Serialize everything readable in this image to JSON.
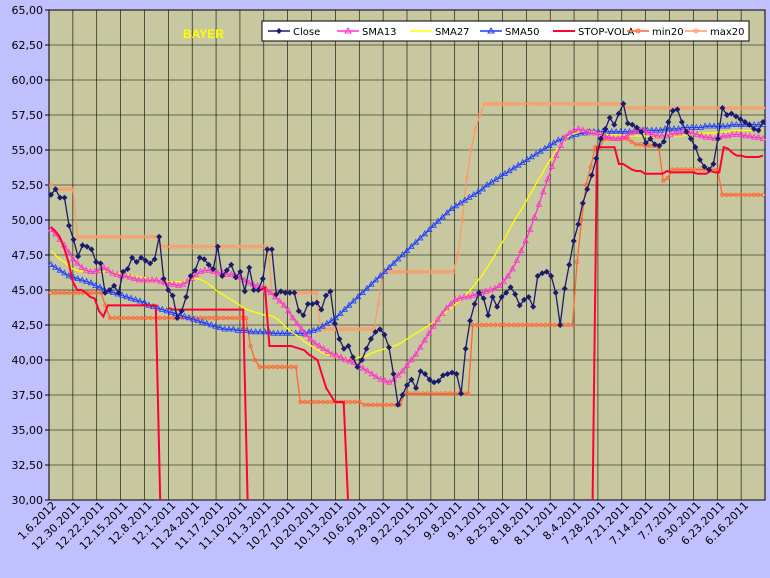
{
  "chart_data": {
    "type": "line",
    "title": "BAYER",
    "ylim": [
      30,
      65
    ],
    "y_ticks": [
      "30,00",
      "32,50",
      "35,00",
      "37,50",
      "40,00",
      "42,50",
      "45,00",
      "47,50",
      "50,00",
      "52,50",
      "55,00",
      "57,50",
      "60,00",
      "62,50",
      "65,00"
    ],
    "x_tick_labels": [
      "1.6.2012",
      "12.30.2011",
      "12.22.2011",
      "12.15.2011",
      "12.8.2011",
      "12.1.2011",
      "11.24.2011",
      "11.17.2011",
      "11.10.2011",
      "11.3.2011",
      "10.27.2011",
      "10.20.2011",
      "10.13.2011",
      "10.6.2011",
      "9.29.2011",
      "9.22.2011",
      "9.15.2011",
      "9.8.2011",
      "9.1.2011",
      "8.25.2011",
      "8.18.2011",
      "8.11.2011",
      "8.4.2011",
      "7.28.2011",
      "7.21.2011",
      "7.14.2011",
      "7.7.2011",
      "6.30.2011",
      "6.23.2011",
      "6.16.2011"
    ],
    "grid": true,
    "legend_position": "top-right",
    "series": [
      {
        "name": "Close",
        "color": "#1a1a6e",
        "marker": "diamond",
        "values": [
          51.8,
          52.2,
          51.6,
          51.6,
          49.6,
          48.6,
          47.4,
          48.2,
          48.1,
          47.9,
          47.0,
          46.9,
          44.8,
          45.0,
          45.3,
          44.8,
          46.3,
          46.5,
          47.3,
          47.0,
          47.3,
          47.1,
          46.9,
          47.2,
          48.8,
          45.8,
          45.0,
          44.6,
          43.0,
          43.5,
          44.5,
          46.0,
          46.4,
          47.3,
          47.2,
          46.8,
          46.5,
          48.1,
          46.0,
          46.4,
          46.8,
          45.9,
          46.3,
          44.9,
          46.6,
          45.0,
          45.0,
          45.8,
          47.9,
          47.9,
          44.7,
          44.9,
          44.8,
          44.8,
          44.8,
          43.5,
          43.2,
          44.0,
          44.0,
          44.1,
          43.6,
          44.6,
          44.9,
          42.6,
          41.5,
          40.8,
          41.0,
          40.2,
          39.5,
          40.0,
          40.8,
          41.5,
          42.0,
          42.2,
          41.8,
          40.9,
          39.0,
          36.8,
          37.5,
          38.2,
          38.6,
          38.0,
          39.2,
          39.0,
          38.6,
          38.4,
          38.5,
          38.9,
          39.0,
          39.1,
          39.0,
          37.6,
          40.8,
          42.8,
          44.0,
          44.8,
          44.4,
          43.2,
          44.5,
          43.8,
          44.5,
          44.8,
          45.2,
          44.7,
          43.9,
          44.3,
          44.5,
          43.8,
          46.0,
          46.2,
          46.3,
          46.0,
          44.8,
          42.5,
          45.1,
          46.8,
          48.5,
          49.7,
          51.2,
          52.2,
          53.2,
          54.4,
          55.8,
          56.5,
          57.3,
          56.8,
          57.6,
          58.3,
          56.9,
          56.8,
          56.6,
          56.3,
          55.5,
          55.8,
          55.4,
          55.3,
          55.6,
          57.0,
          57.8,
          57.9,
          57.0,
          56.3,
          55.8,
          55.2,
          54.3,
          53.8,
          53.6,
          54.0,
          55.8,
          58.0,
          57.5,
          57.6,
          57.4,
          57.2,
          57.0,
          56.8,
          56.5,
          56.4,
          57.0
        ]
      },
      {
        "name": "SMA13",
        "color": "#ff33cc",
        "marker": "triangle",
        "values": [
          49.3,
          49.0,
          48.6,
          48.2,
          47.7,
          47.2,
          46.9,
          46.6,
          46.4,
          46.3,
          46.3,
          46.4,
          46.6,
          46.4,
          46.2,
          46.1,
          46.0,
          46.0,
          45.9,
          45.8,
          45.7,
          45.7,
          45.7,
          45.7,
          45.7,
          45.6,
          45.5,
          45.4,
          45.4,
          45.3,
          45.4,
          45.6,
          45.8,
          46.1,
          46.3,
          46.4,
          46.4,
          46.3,
          46.2,
          46.2,
          46.1,
          46.1,
          46.0,
          45.9,
          45.7,
          45.5,
          45.4,
          45.3,
          45.1,
          45.0,
          44.8,
          44.5,
          44.2,
          43.9,
          43.5,
          43.0,
          42.6,
          42.2,
          41.8,
          41.5,
          41.2,
          41.0,
          40.8,
          40.6,
          40.4,
          40.3,
          40.2,
          40.0,
          39.9,
          39.8,
          39.6,
          39.4,
          39.2,
          39.0,
          38.8,
          38.6,
          38.5,
          38.4,
          38.6,
          38.9,
          39.2,
          39.6,
          40.0,
          40.4,
          40.9,
          41.4,
          41.9,
          42.4,
          42.9,
          43.3,
          43.7,
          44.0,
          44.3,
          44.4,
          44.5,
          44.5,
          44.6,
          44.7,
          44.8,
          44.9,
          45.0,
          45.1,
          45.3,
          45.6,
          46.0,
          46.5,
          47.1,
          47.8,
          48.5,
          49.3,
          50.2,
          51.1,
          52.0,
          52.9,
          53.8,
          54.6,
          55.3,
          55.9,
          56.2,
          56.4,
          56.5,
          56.4,
          56.3,
          56.2,
          56.2,
          56.1,
          56.0,
          55.9,
          55.8,
          55.8,
          55.9,
          56.0,
          56.2,
          56.3,
          56.4,
          56.4,
          56.2,
          56.1,
          56.0,
          56.0,
          56.0,
          56.1,
          56.2,
          56.2,
          56.3,
          56.3,
          56.2,
          56.1,
          56.0,
          55.9,
          55.9,
          55.8,
          55.9,
          56.0,
          56.0,
          56.1,
          56.1,
          56.1,
          56.0,
          56.0,
          55.9,
          55.9,
          55.8
        ]
      },
      {
        "name": "SMA27",
        "color": "#ffff00",
        "marker": "none",
        "values": [
          47.8,
          47.5,
          47.2,
          47.0,
          46.7,
          46.5,
          46.4,
          46.3,
          46.3,
          46.3,
          46.3,
          46.3,
          46.3,
          46.3,
          46.3,
          46.2,
          46.2,
          46.1,
          46.0,
          46.0,
          45.9,
          45.9,
          45.8,
          45.7,
          45.7,
          45.6,
          45.6,
          45.6,
          45.6,
          45.6,
          45.6,
          45.7,
          45.8,
          45.8,
          45.7,
          45.5,
          45.3,
          45.0,
          44.8,
          44.6,
          44.4,
          44.2,
          44.0,
          43.8,
          43.6,
          43.5,
          43.4,
          43.3,
          43.2,
          43.2,
          43.1,
          42.9,
          42.6,
          42.3,
          42.0,
          41.8,
          41.6,
          41.3,
          41.1,
          40.9,
          40.7,
          40.5,
          40.4,
          40.3,
          40.2,
          40.2,
          40.1,
          40.1,
          40.1,
          40.2,
          40.2,
          40.3,
          40.5,
          40.6,
          40.7,
          40.8,
          40.9,
          41.0,
          41.1,
          41.3,
          41.5,
          41.7,
          41.9,
          42.1,
          42.3,
          42.5,
          42.7,
          43.0,
          43.2,
          43.5,
          43.7,
          44.0,
          44.3,
          44.6,
          44.9,
          45.3,
          45.7,
          46.1,
          46.6,
          47.1,
          47.6,
          48.2,
          48.7,
          49.3,
          49.9,
          50.4,
          50.9,
          51.5,
          52.0,
          52.6,
          53.1,
          53.7,
          54.2,
          54.7,
          55.2,
          55.6,
          55.9,
          56.1,
          56.2,
          56.3,
          56.3,
          56.3,
          56.3,
          56.2,
          56.2,
          56.1,
          56.1,
          56.1,
          56.1,
          56.0,
          56.0,
          56.0,
          56.0,
          56.0,
          56.0,
          55.9,
          55.9,
          55.9,
          56.0,
          56.0,
          56.0,
          56.0,
          56.0,
          56.1,
          56.1,
          56.1,
          56.2,
          56.2,
          56.2,
          56.2,
          56.3,
          56.3,
          56.3,
          56.4,
          56.4,
          56.4,
          56.4,
          56.4,
          56.4,
          56.4,
          56.4
        ]
      },
      {
        "name": "SMA50",
        "color": "#1f3fff",
        "marker": "triangle",
        "values": [
          46.8,
          46.6,
          46.4,
          46.2,
          46.0,
          45.9,
          45.8,
          45.7,
          45.6,
          45.5,
          45.3,
          45.2,
          45.0,
          44.9,
          44.8,
          44.7,
          44.6,
          44.5,
          44.4,
          44.3,
          44.2,
          44.1,
          43.9,
          43.8,
          43.7,
          43.6,
          43.5,
          43.4,
          43.3,
          43.2,
          43.1,
          43.0,
          42.9,
          42.8,
          42.7,
          42.6,
          42.5,
          42.4,
          42.3,
          42.2,
          42.2,
          42.2,
          42.1,
          42.1,
          42.1,
          42.0,
          42.0,
          42.0,
          42.0,
          42.0,
          41.9,
          41.9,
          41.9,
          41.9,
          41.9,
          41.9,
          41.9,
          41.9,
          42.0,
          42.1,
          42.2,
          42.4,
          42.6,
          42.8,
          43.0,
          43.3,
          43.6,
          43.9,
          44.2,
          44.5,
          44.8,
          45.1,
          45.4,
          45.7,
          46.0,
          46.3,
          46.6,
          46.9,
          47.2,
          47.5,
          47.8,
          48.1,
          48.4,
          48.7,
          49.0,
          49.3,
          49.6,
          49.9,
          50.2,
          50.5,
          50.8,
          51.0,
          51.2,
          51.4,
          51.6,
          51.8,
          52.0,
          52.2,
          52.5,
          52.7,
          52.9,
          53.1,
          53.3,
          53.5,
          53.7,
          53.9,
          54.1,
          54.3,
          54.5,
          54.7,
          54.9,
          55.1,
          55.3,
          55.5,
          55.7,
          55.8,
          55.9,
          56.0,
          56.1,
          56.2,
          56.2,
          56.3,
          56.3,
          56.3,
          56.3,
          56.3,
          56.3,
          56.3,
          56.3,
          56.3,
          56.3,
          56.3,
          56.3,
          56.4,
          56.4,
          56.4,
          56.4,
          56.4,
          56.5,
          56.5,
          56.5,
          56.5,
          56.6,
          56.6,
          56.6,
          56.6,
          56.6,
          56.7,
          56.7,
          56.7,
          56.7,
          56.7,
          56.7,
          56.8,
          56.8,
          56.8,
          56.8,
          56.8,
          56.8,
          56.8,
          56.8
        ]
      },
      {
        "name": "STOP-VOLA",
        "color": "#ff0033",
        "marker": "none",
        "values": [
          49.5,
          49.2,
          48.8,
          48.0,
          47.0,
          45.6,
          45.0,
          45.0,
          44.8,
          44.5,
          44.4,
          43.5,
          43.1,
          43.9,
          43.9,
          43.9,
          43.9,
          43.9,
          43.9,
          43.9,
          43.9,
          43.9,
          43.9,
          43.9,
          43.9,
          30.0,
          null,
          43.7,
          43.6,
          43.6,
          43.6,
          43.6,
          43.6,
          43.6,
          43.6,
          43.6,
          43.6,
          43.6,
          43.6,
          43.6,
          43.6,
          43.6,
          43.6,
          43.6,
          43.6,
          30.0,
          null,
          45.0,
          45.0,
          45.2,
          41.0,
          41.0,
          41.0,
          41.0,
          41.0,
          41.0,
          40.9,
          40.8,
          40.7,
          40.4,
          40.2,
          40.0,
          39.0,
          38.0,
          37.5,
          37.0,
          37.0,
          37.0,
          30.0,
          null,
          null,
          null,
          null,
          null,
          null,
          null,
          null,
          null,
          null,
          null,
          null,
          null,
          null,
          null,
          null,
          null,
          null,
          null,
          null,
          null,
          null,
          null,
          null,
          null,
          null,
          null,
          null,
          null,
          null,
          null,
          null,
          null,
          null,
          null,
          null,
          null,
          null,
          null,
          null,
          null,
          null,
          null,
          null,
          null,
          null,
          null,
          null,
          null,
          null,
          null,
          null,
          null,
          null,
          null,
          30.0,
          55.2,
          55.2,
          55.2,
          55.2,
          55.2,
          54.0,
          54.0,
          53.8,
          53.6,
          53.5,
          53.5,
          53.3,
          53.3,
          53.3,
          53.3,
          53.3,
          53.5,
          53.4,
          53.4,
          53.4,
          53.4,
          53.4,
          53.4,
          53.3,
          53.3,
          53.3,
          53.5,
          53.4,
          53.4,
          55.2,
          55.1,
          54.8,
          54.6,
          54.6,
          54.5,
          54.5,
          54.5,
          54.5,
          54.6
        ]
      },
      {
        "name": "min20",
        "color": "#ff6633",
        "marker": "circle",
        "values": [
          44.8,
          44.8,
          44.8,
          44.8,
          44.8,
          44.8,
          44.8,
          44.8,
          44.8,
          44.8,
          44.8,
          44.8,
          43.9,
          43.0,
          43.0,
          43.0,
          43.0,
          43.0,
          43.0,
          43.0,
          43.0,
          43.0,
          43.0,
          43.0,
          43.0,
          43.0,
          43.0,
          43.0,
          43.0,
          43.0,
          43.0,
          43.0,
          43.0,
          43.0,
          43.0,
          43.0,
          43.0,
          43.0,
          43.0,
          43.0,
          43.0,
          43.0,
          43.0,
          43.0,
          41.0,
          40.0,
          39.5,
          39.5,
          39.5,
          39.5,
          39.5,
          39.5,
          39.5,
          39.5,
          39.5,
          37.0,
          37.0,
          37.0,
          37.0,
          37.0,
          37.0,
          37.0,
          37.0,
          37.0,
          37.0,
          37.0,
          37.0,
          37.0,
          37.0,
          36.8,
          36.8,
          36.8,
          36.8,
          36.8,
          36.8,
          36.8,
          36.8,
          36.8,
          37.6,
          37.6,
          37.6,
          37.6,
          37.6,
          37.6,
          37.6,
          37.6,
          37.6,
          37.6,
          37.6,
          37.6,
          37.6,
          37.6,
          37.6,
          42.5,
          42.5,
          42.5,
          42.5,
          42.5,
          42.5,
          42.5,
          42.5,
          42.5,
          42.5,
          42.5,
          42.5,
          42.5,
          42.5,
          42.5,
          42.5,
          42.5,
          42.5,
          42.5,
          42.5,
          42.5,
          42.5,
          42.5,
          47.0,
          50.0,
          52.5,
          53.8,
          55.2,
          55.2,
          55.8,
          55.8,
          55.8,
          55.8,
          55.8,
          55.8,
          55.6,
          55.4,
          55.4,
          55.3,
          55.3,
          55.3,
          55.2,
          52.8,
          53.0,
          53.6,
          53.6,
          53.6,
          53.6,
          53.6,
          53.6,
          53.6,
          53.6,
          53.6,
          53.6,
          53.6,
          51.8,
          51.8,
          51.8,
          51.8,
          51.8,
          51.8,
          51.8,
          51.8,
          51.8,
          51.8
        ]
      },
      {
        "name": "max20",
        "color": "#ff9966",
        "marker": "circle",
        "values": [
          52.5,
          52.2,
          52.2,
          52.2,
          52.2,
          52.2,
          48.8,
          48.8,
          48.8,
          48.8,
          48.8,
          48.8,
          48.8,
          48.8,
          48.8,
          48.8,
          48.8,
          48.8,
          48.8,
          48.8,
          48.8,
          48.8,
          48.8,
          48.8,
          48.8,
          48.1,
          48.1,
          48.1,
          48.1,
          48.1,
          48.1,
          48.1,
          48.1,
          48.1,
          48.1,
          48.1,
          48.1,
          48.1,
          48.1,
          48.1,
          48.1,
          48.1,
          48.1,
          48.1,
          48.1,
          48.1,
          48.1,
          48.1,
          48.1,
          48.1,
          44.8,
          44.8,
          44.8,
          44.8,
          44.8,
          44.8,
          44.8,
          44.8,
          44.8,
          44.8,
          44.8,
          42.2,
          42.2,
          42.2,
          42.2,
          42.2,
          42.2,
          42.2,
          42.2,
          42.2,
          42.2,
          42.2,
          42.2,
          42.2,
          44.0,
          46.3,
          46.3,
          46.3,
          46.3,
          46.3,
          46.3,
          46.3,
          46.3,
          46.3,
          46.3,
          46.3,
          46.3,
          46.3,
          46.3,
          46.3,
          46.3,
          46.3,
          47.5,
          50.0,
          53.0,
          55.0,
          56.5,
          57.5,
          58.3,
          58.3,
          58.3,
          58.3,
          58.3,
          58.3,
          58.3,
          58.3,
          58.3,
          58.3,
          58.3,
          58.3,
          58.3,
          58.3,
          58.3,
          58.3,
          58.3,
          58.3,
          58.3,
          58.3,
          58.3,
          58.3,
          58.3,
          58.3,
          58.3,
          58.3,
          58.3,
          58.3,
          58.3,
          58.3,
          58.3,
          58.3,
          58.0,
          58.0,
          58.0,
          58.0,
          58.0,
          58.0,
          58.0,
          58.0,
          58.0,
          58.0,
          58.0,
          58.0,
          58.0,
          58.0,
          58.0,
          58.0,
          58.0,
          58.0,
          58.0,
          58.0,
          58.0,
          58.0,
          58.0,
          58.0,
          58.0,
          58.0,
          58.0,
          58.0,
          58.0,
          58.0,
          58.0,
          58.0
        ]
      }
    ]
  }
}
